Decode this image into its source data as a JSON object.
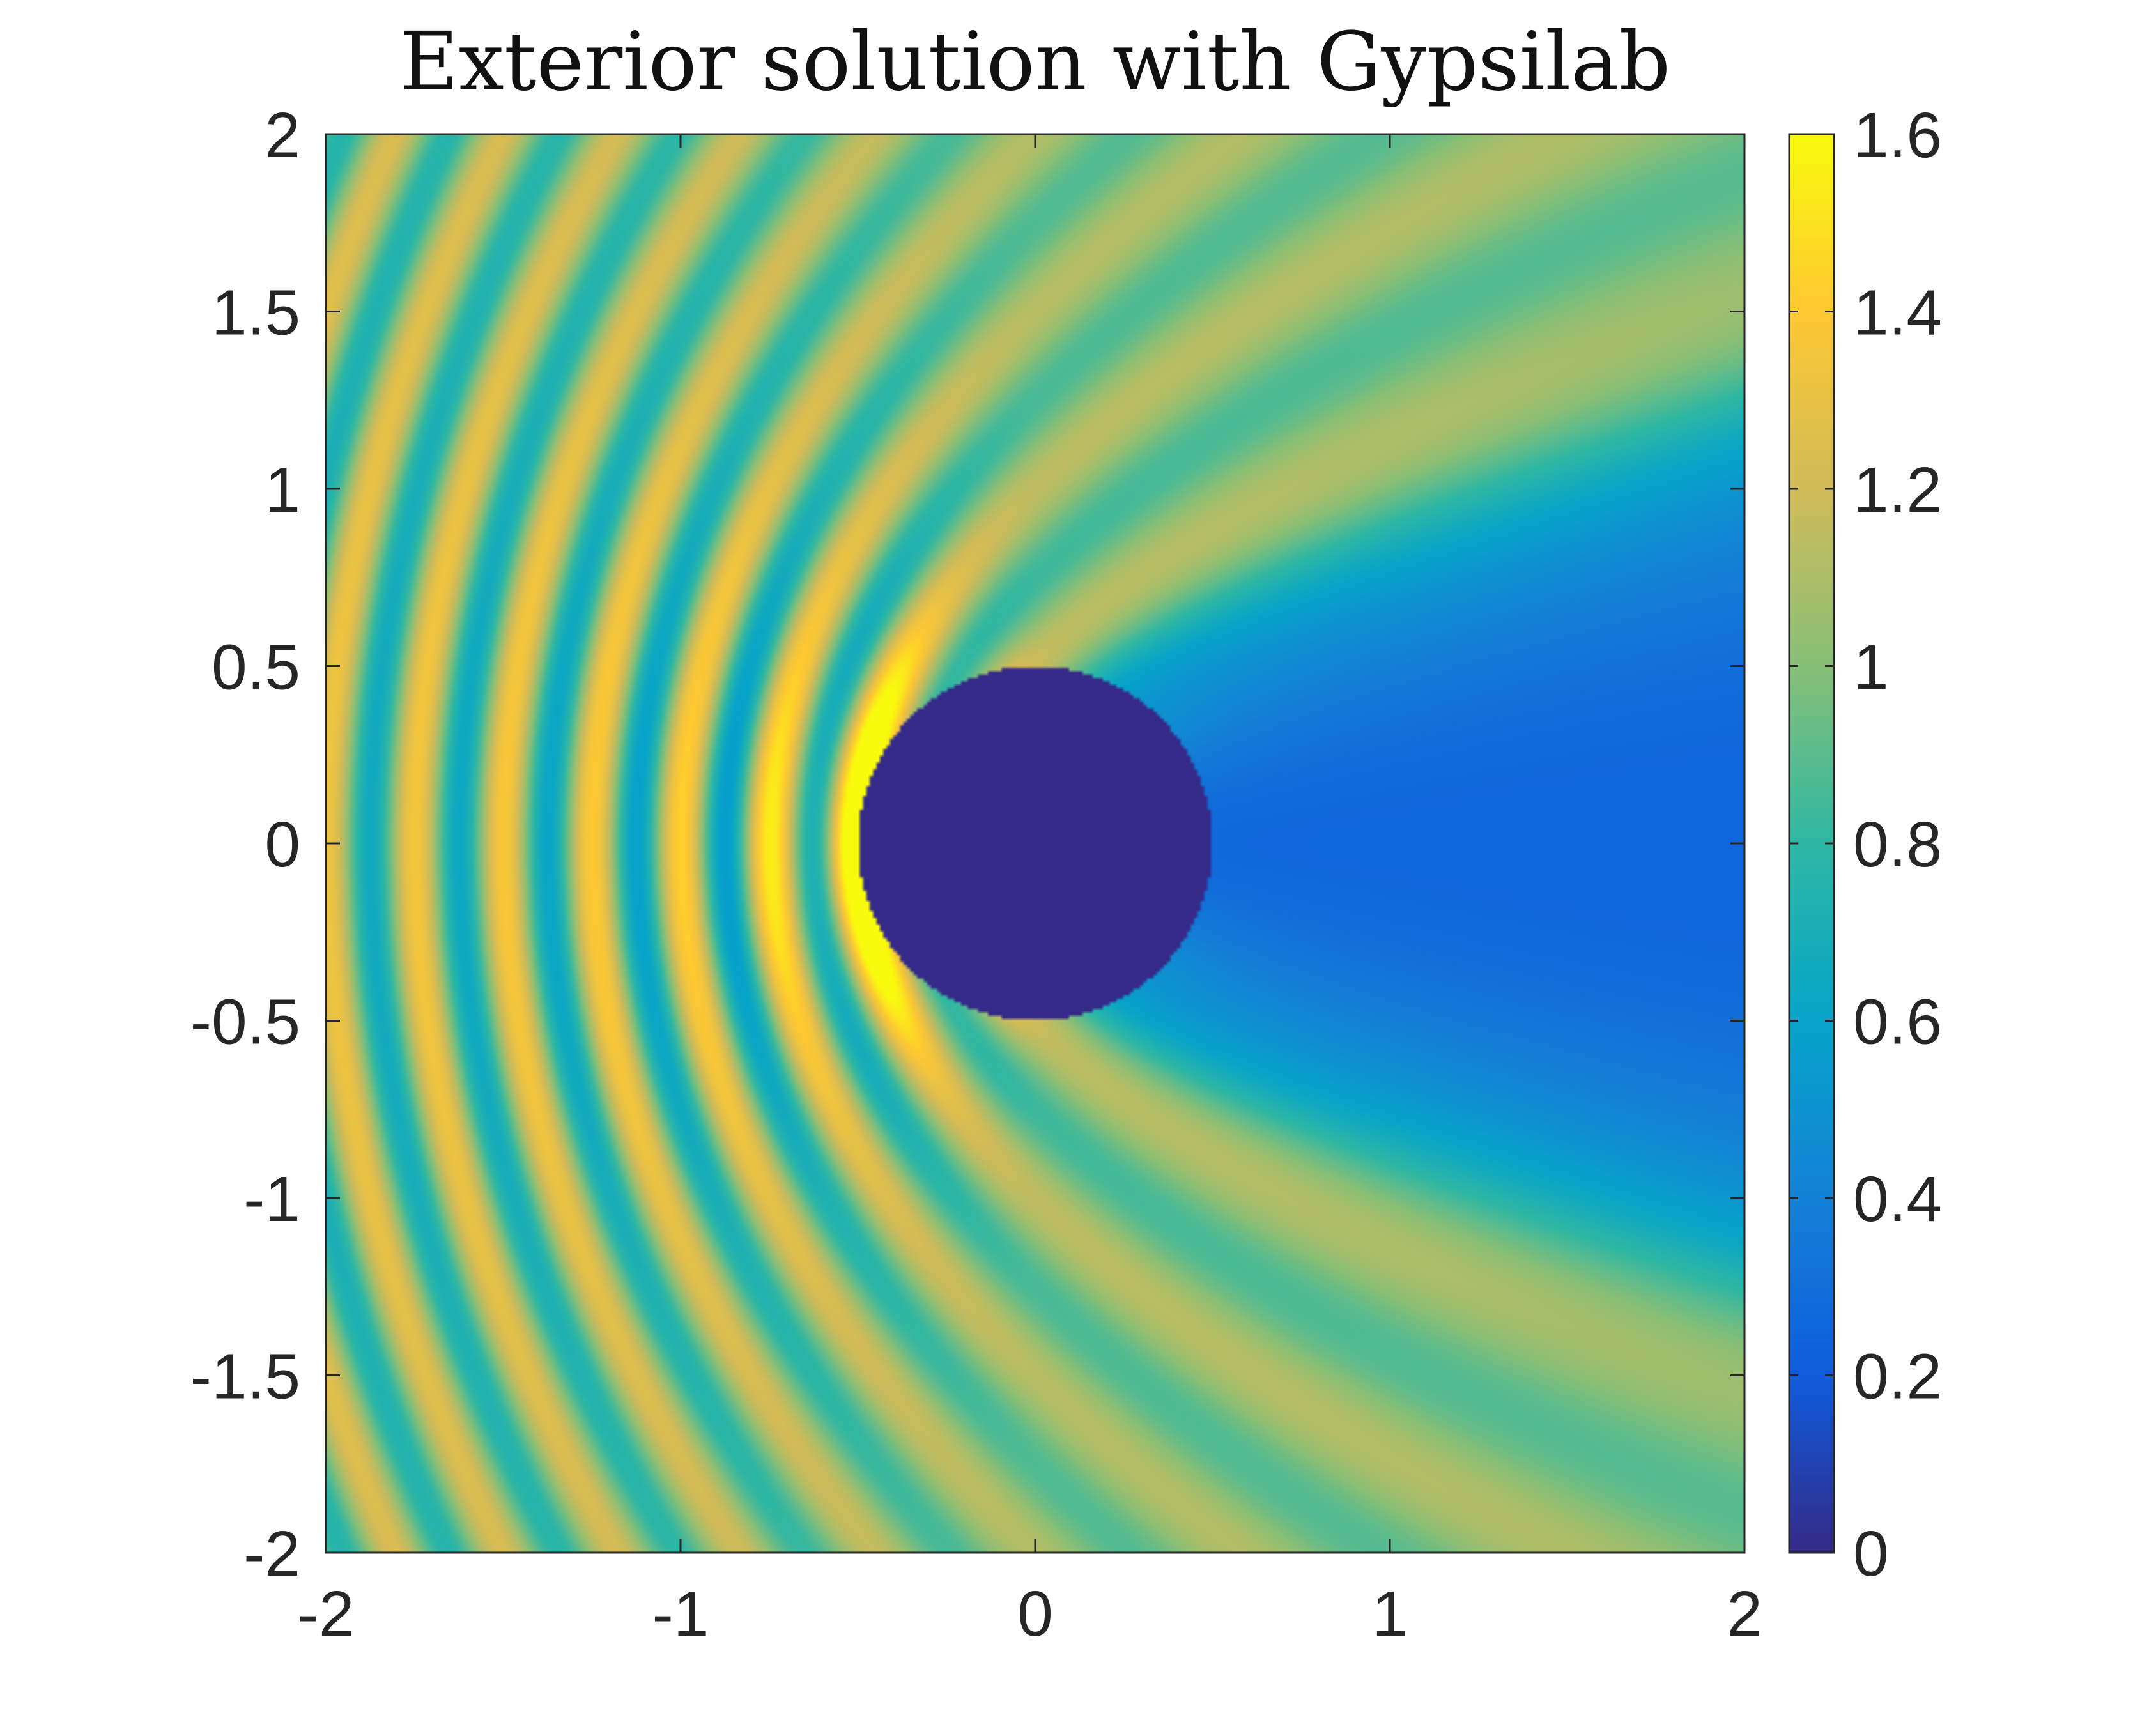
{
  "chart_data": {
    "type": "heatmap",
    "title": "Exterior solution with Gypsilab",
    "xlabel": "",
    "ylabel": "",
    "xlim": [
      -2,
      2
    ],
    "ylim": [
      -2,
      2
    ],
    "x_ticks": [
      "-2",
      "-1",
      "0",
      "1",
      "2"
    ],
    "y_ticks": [
      "2",
      "1.5",
      "1",
      "0.5",
      "0",
      "-0.5",
      "-1",
      "-1.5",
      "-2"
    ],
    "colorbar": {
      "colormap": "parula",
      "limits": [
        0,
        1.6
      ],
      "ticks": [
        "1.6",
        "1.4",
        "1.2",
        "1",
        "0.8",
        "0.6",
        "0.4",
        "0.2",
        "0"
      ]
    },
    "field": {
      "description_values": "magnitude of total field (incident plane wave travelling in +x, scattered by a disk centred at the origin)",
      "scatterer_center": [
        0,
        0
      ],
      "scatterer_radius": 0.5,
      "value_inside_scatterer": 0,
      "peak_value": 1.6,
      "far_field_value": 1.0,
      "wavelength_approx": 0.5
    },
    "grid": false
  },
  "colors": {
    "parula": [
      "#352a87",
      "#0f5cdd",
      "#1481d6",
      "#06a4ca",
      "#2eb7a4",
      "#87bf77",
      "#d1bb59",
      "#fec832",
      "#f9fb0e"
    ],
    "axes": "#262626"
  }
}
